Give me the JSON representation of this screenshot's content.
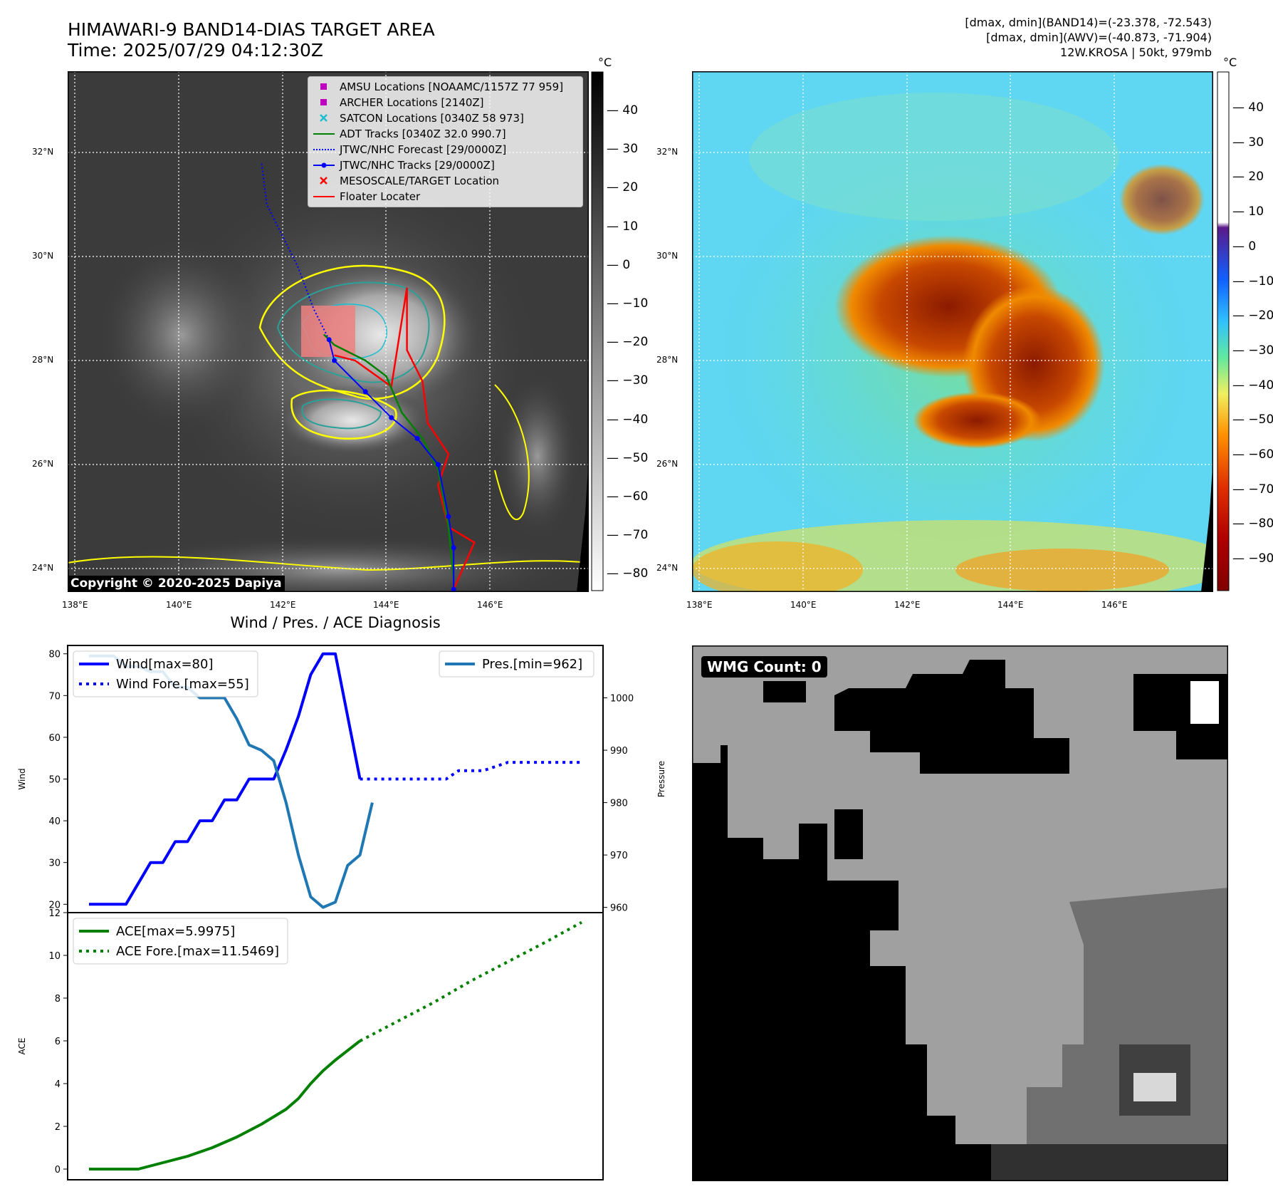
{
  "header": {
    "title_line1": "HIMAWARI-9 BAND14-DIAS TARGET AREA",
    "title_line2": "Time: 2025/07/29 04:12:30Z",
    "info_line1": "[dmax, dmin](BAND14)=(-23.378, -72.543)",
    "info_line2": "[dmax, dmin](AWV)=(-40.873, -71.904)",
    "info_line3": "12W.KROSA | 50kt, 979mb"
  },
  "maps": {
    "lat_labels": [
      "32°N",
      "30°N",
      "28°N",
      "26°N",
      "24°N"
    ],
    "lon_labels": [
      "138°E",
      "140°E",
      "142°E",
      "144°E",
      "146°E"
    ],
    "copyright": "Copyright © 2020-2025 Dapiya",
    "left_colorbar": {
      "unit": "°C",
      "ticks": [
        "40",
        "30",
        "20",
        "10",
        "0",
        "−10",
        "−20",
        "−30",
        "−40",
        "−50",
        "−60",
        "−70",
        "−80"
      ]
    },
    "right_colorbar": {
      "unit": "°C",
      "ticks": [
        "40",
        "30",
        "20",
        "10",
        "0",
        "−10",
        "−20",
        "−30",
        "−40",
        "−50",
        "−60",
        "−70",
        "−80",
        "−90"
      ]
    },
    "legend": [
      {
        "label": "AMSU Locations [NOAAMC/1157Z 77 959]",
        "color": "#c000c0",
        "symbol": "square"
      },
      {
        "label": "ARCHER Locations [2140Z]",
        "color": "#c000c0",
        "symbol": "square"
      },
      {
        "label": "SATCON Locations [0340Z 58 973]",
        "color": "#17becf",
        "symbol": "x"
      },
      {
        "label": "ADT Tracks [0340Z 32.0 990.7]",
        "color": "#008000",
        "symbol": "line"
      },
      {
        "label": "JTWC/NHC Forecast [29/0000Z]",
        "color": "#0000ff",
        "symbol": "dotted"
      },
      {
        "label": "JTWC/NHC Tracks [29/0000Z]",
        "color": "#0000ff",
        "symbol": "line-dot"
      },
      {
        "label": "MESOSCALE/TARGET Location",
        "color": "#ff0000",
        "symbol": "x"
      },
      {
        "label": "Floater Locater",
        "color": "#ff0000",
        "symbol": "line"
      }
    ],
    "tracks": {
      "jtwc_track": [
        [
          145.3,
          23.6
        ],
        [
          145.3,
          24.4
        ],
        [
          145.2,
          25.0
        ],
        [
          145.0,
          26.0
        ],
        [
          144.6,
          26.5
        ],
        [
          144.1,
          26.9
        ],
        [
          143.6,
          27.4
        ],
        [
          143.0,
          28.0
        ],
        [
          142.9,
          28.4
        ]
      ],
      "jtwc_forecast": [
        [
          142.9,
          28.4
        ],
        [
          142.6,
          29.0
        ],
        [
          142.3,
          29.8
        ],
        [
          142.0,
          30.4
        ],
        [
          141.7,
          31.0
        ],
        [
          141.6,
          31.8
        ]
      ],
      "adt_track": [
        [
          145.3,
          23.8
        ],
        [
          145.2,
          24.8
        ],
        [
          145.0,
          25.9
        ],
        [
          144.7,
          26.5
        ],
        [
          144.3,
          27.0
        ],
        [
          144.0,
          27.7
        ],
        [
          143.6,
          28.0
        ],
        [
          143.0,
          28.3
        ],
        [
          142.8,
          28.5
        ]
      ],
      "floater": [
        [
          145.3,
          23.6
        ],
        [
          145.7,
          24.5
        ],
        [
          145.2,
          24.8
        ],
        [
          145.0,
          25.6
        ],
        [
          145.2,
          26.2
        ],
        [
          144.8,
          26.8
        ],
        [
          144.7,
          27.6
        ],
        [
          144.4,
          28.2
        ],
        [
          144.4,
          29.4
        ],
        [
          144.1,
          27.5
        ],
        [
          143.4,
          28.0
        ],
        [
          143.0,
          28.1
        ]
      ]
    }
  },
  "chart_data": [
    {
      "type": "line",
      "title": "Wind / Pres. / ACE Diagnosis",
      "ylabel": "Wind",
      "ylabel_right": "Pressure",
      "ylim": [
        18,
        82
      ],
      "ylim_right": [
        959,
        1010
      ],
      "y_ticks": [
        "80",
        "70",
        "60",
        "50",
        "40",
        "30",
        "20"
      ],
      "y_ticks_right": [
        "1000",
        "990",
        "980",
        "970",
        "960"
      ],
      "series": [
        {
          "name": "Wind[max=80]",
          "axis": "left",
          "style": "solid",
          "color": "#0000ff",
          "x": [
            0,
            3,
            5,
            6,
            7,
            8,
            9,
            10,
            11,
            12,
            13,
            14,
            15,
            16,
            17,
            18,
            19,
            20,
            21,
            22
          ],
          "values": [
            20,
            20,
            30,
            30,
            35,
            35,
            40,
            40,
            45,
            45,
            50,
            50,
            50,
            57,
            65,
            75,
            80,
            80,
            65,
            50
          ]
        },
        {
          "name": "Wind Fore.[max=55]",
          "axis": "left",
          "style": "dotted",
          "color": "#0000ff",
          "x": [
            22,
            24,
            26,
            27,
            28,
            29,
            30,
            32,
            34,
            36,
            38,
            40
          ],
          "values": [
            50,
            50,
            50,
            50,
            50,
            50,
            52,
            52,
            54,
            54,
            54,
            54
          ]
        },
        {
          "name": "Pres.[min=962]",
          "axis": "right",
          "style": "solid",
          "color": "#1f77b4",
          "x": [
            0,
            2,
            3,
            4,
            5,
            6,
            7,
            8,
            9,
            10,
            11,
            12,
            13,
            14,
            15,
            16,
            17,
            18,
            19,
            20,
            21,
            22,
            23
          ],
          "values": [
            1008,
            1008,
            1006,
            1006,
            1005,
            1005,
            1002,
            1002,
            1000,
            1000,
            1000,
            996,
            991,
            990,
            988,
            980,
            970,
            962,
            960,
            961,
            968,
            970,
            980
          ]
        }
      ]
    },
    {
      "type": "line",
      "ylabel": "ACE",
      "ylim": [
        -0.5,
        12
      ],
      "y_ticks": [
        "12",
        "10",
        "8",
        "6",
        "4",
        "2",
        "0"
      ],
      "series": [
        {
          "name": "ACE[max=5.9975]",
          "style": "solid",
          "color": "#008000",
          "x": [
            0,
            2,
            4,
            6,
            8,
            10,
            12,
            14,
            16,
            17,
            18,
            19,
            20,
            22
          ],
          "values": [
            0,
            0,
            0,
            0.3,
            0.6,
            1.0,
            1.5,
            2.1,
            2.8,
            3.3,
            4.0,
            4.6,
            5.1,
            5.9975
          ]
        },
        {
          "name": "ACE Fore.[max=11.5469]",
          "style": "dotted",
          "color": "#008000",
          "x": [
            22,
            25,
            28,
            31,
            34,
            37,
            40
          ],
          "values": [
            5.9975,
            6.9,
            7.8,
            8.8,
            9.7,
            10.6,
            11.5469
          ]
        }
      ]
    }
  ],
  "wmg": {
    "label": "WMG Count: 0"
  }
}
